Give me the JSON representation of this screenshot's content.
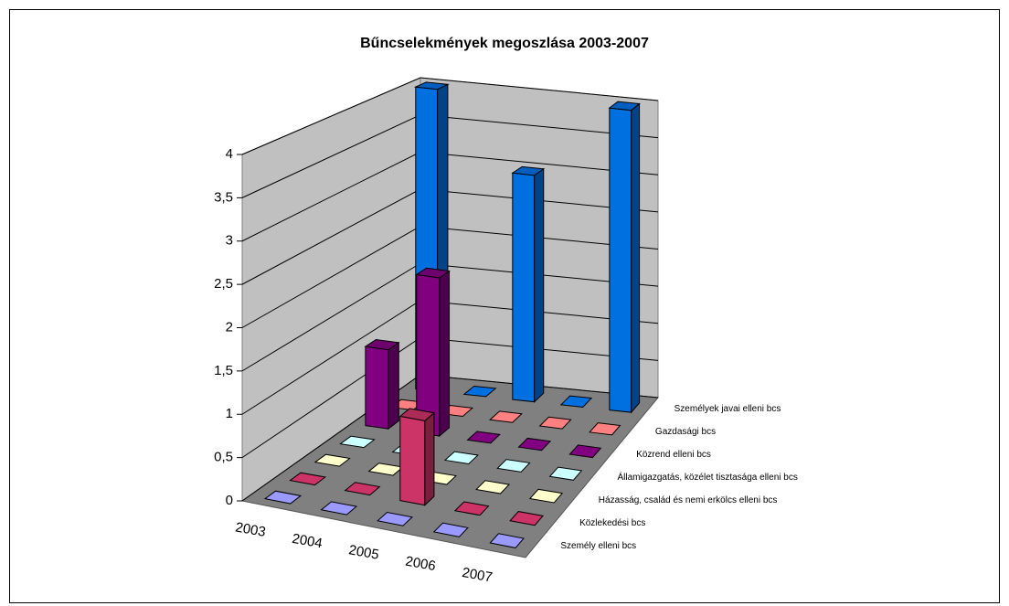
{
  "chart_data": {
    "type": "bar3d",
    "title": "Bűncselekmények megoszlása 2003-2007",
    "categories": [
      "2003",
      "2004",
      "2005",
      "2006",
      "2007"
    ],
    "series": [
      {
        "name": "Személy elleni bcs",
        "color": "#9999ff",
        "values": [
          0,
          0,
          0,
          0,
          0
        ]
      },
      {
        "name": "Közlekedési bcs",
        "color": "#cc3366",
        "values": [
          0,
          0,
          1,
          0,
          0
        ]
      },
      {
        "name": "Házasság, család és nemi erkölcs elleni bcs",
        "color": "#ffffcc",
        "values": [
          0,
          0,
          0,
          0,
          0
        ]
      },
      {
        "name": "Államigazgatás, közélet tisztasága elleni bcs",
        "color": "#ccffff",
        "values": [
          0,
          0,
          0,
          0,
          0
        ]
      },
      {
        "name": "Közrend elleni bcs",
        "color": "#800080",
        "values": [
          1,
          2,
          0,
          0,
          0
        ]
      },
      {
        "name": "Gazdasági bcs",
        "color": "#ff8080",
        "values": [
          0,
          0,
          0,
          0,
          0
        ]
      },
      {
        "name": "Személyek javai elleni bcs",
        "color": "#0070e0",
        "values": [
          4,
          0,
          3,
          0,
          4
        ]
      }
    ],
    "ylim": [
      0,
      4
    ],
    "yticks": [
      0,
      {
        "value": 0.5,
        "label": "0,5"
      },
      1,
      {
        "value": 1.5,
        "label": "1,5"
      },
      2,
      {
        "value": 2.5,
        "label": "2,5"
      },
      3,
      {
        "value": 3.5,
        "label": "3,5"
      },
      4
    ],
    "grid": true
  }
}
